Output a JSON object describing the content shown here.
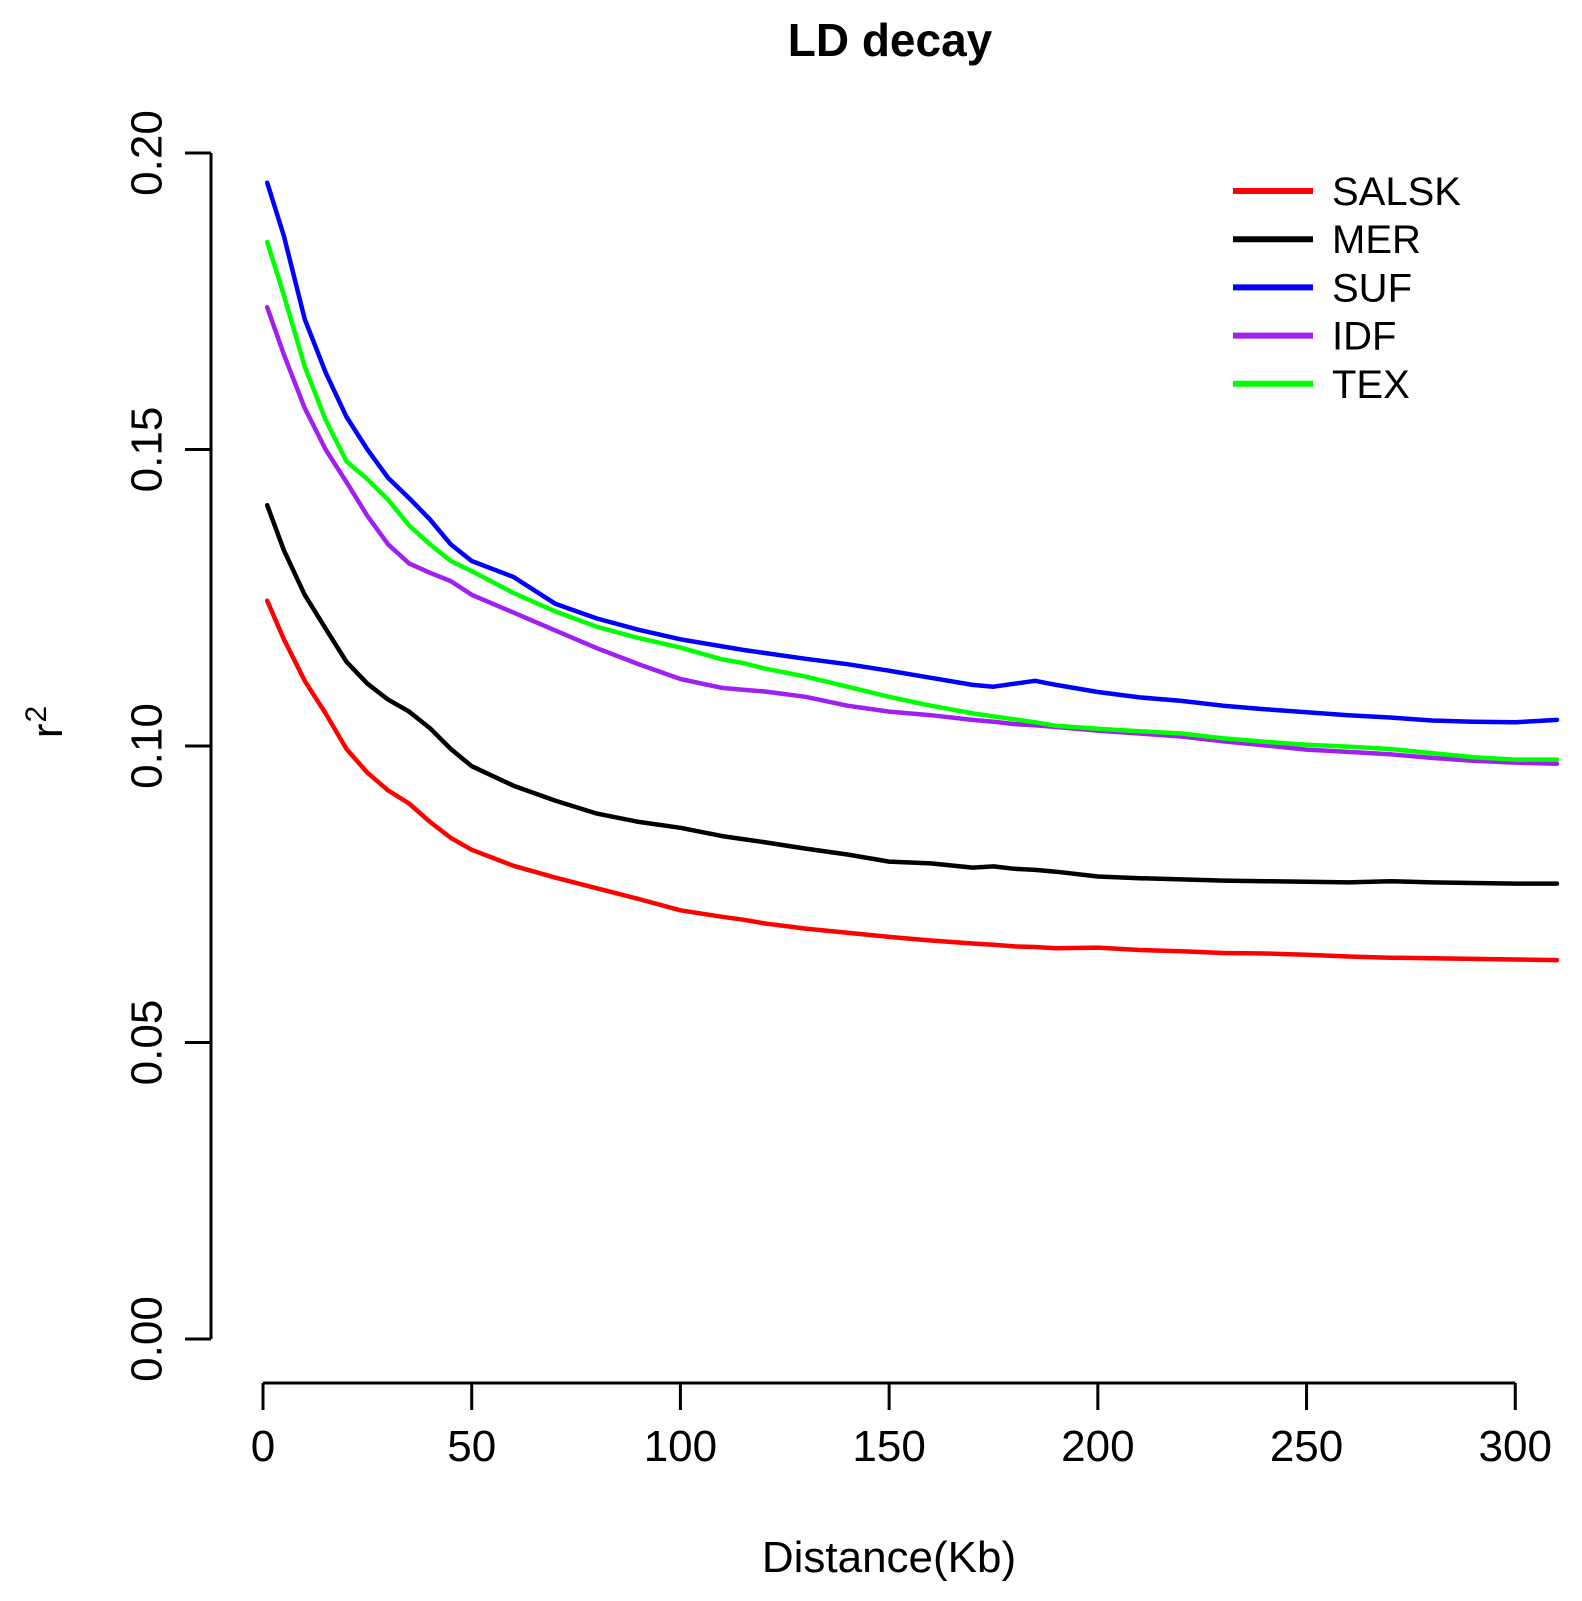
{
  "title": "LD decay",
  "axes": {
    "xlabel": "Distance(Kb)",
    "ylabel_base": "r",
    "ylabel_sup": "2"
  },
  "chart_data": {
    "type": "line",
    "title": "LD decay",
    "xlabel": "Distance(Kb)",
    "ylabel": "r^2",
    "xlim": [
      0,
      310
    ],
    "ylim": [
      0,
      0.2
    ],
    "x_tick_values": [
      0,
      50,
      100,
      150,
      200,
      250,
      300
    ],
    "x_tick_labels": [
      "0",
      "50",
      "100",
      "150",
      "200",
      "250",
      "300"
    ],
    "y_tick_values": [
      0,
      0.05,
      0.1,
      0.15,
      0.2
    ],
    "y_tick_labels": [
      "0.00",
      "0.05",
      "0.10",
      "0.15",
      "0.20"
    ],
    "grid": false,
    "legend_position": "top-right",
    "x": [
      1,
      5,
      10,
      15,
      20,
      25,
      30,
      35,
      40,
      45,
      50,
      60,
      70,
      80,
      90,
      100,
      110,
      115,
      120,
      130,
      140,
      150,
      160,
      170,
      175,
      180,
      185,
      190,
      200,
      210,
      220,
      230,
      240,
      250,
      260,
      270,
      280,
      290,
      300,
      310
    ],
    "series": [
      {
        "name": "SALSK",
        "color": "#FF0000",
        "values": [
          0.1245,
          0.118,
          0.111,
          0.1055,
          0.0995,
          0.0955,
          0.0925,
          0.0903,
          0.0872,
          0.0845,
          0.0825,
          0.0798,
          0.0778,
          0.076,
          0.0742,
          0.0723,
          0.0712,
          0.0707,
          0.0701,
          0.0692,
          0.0685,
          0.0678,
          0.0672,
          0.0667,
          0.0665,
          0.0662,
          0.0661,
          0.0659,
          0.066,
          0.0656,
          0.0654,
          0.0651,
          0.065,
          0.0648,
          0.0645,
          0.0643,
          0.0642,
          0.0641,
          0.064,
          0.0639
        ]
      },
      {
        "name": "MER",
        "color": "#000000",
        "values": [
          0.1406,
          0.133,
          0.1255,
          0.1198,
          0.1142,
          0.1105,
          0.1078,
          0.1058,
          0.103,
          0.0995,
          0.0966,
          0.0933,
          0.0908,
          0.0886,
          0.0872,
          0.0862,
          0.0848,
          0.0843,
          0.0838,
          0.0827,
          0.0817,
          0.0805,
          0.0802,
          0.0795,
          0.0797,
          0.0793,
          0.0791,
          0.0788,
          0.078,
          0.0777,
          0.0775,
          0.0773,
          0.0772,
          0.0771,
          0.077,
          0.0772,
          0.077,
          0.0769,
          0.0768,
          0.0768
        ]
      },
      {
        "name": "SUF",
        "color": "#0000FF",
        "values": [
          0.195,
          0.186,
          0.172,
          0.163,
          0.1555,
          0.15,
          0.1452,
          0.1418,
          0.1382,
          0.134,
          0.1312,
          0.1285,
          0.124,
          0.1215,
          0.1196,
          0.118,
          0.1168,
          0.1162,
          0.1157,
          0.1147,
          0.1138,
          0.1127,
          0.1115,
          0.1103,
          0.11,
          0.1105,
          0.111,
          0.1103,
          0.1091,
          0.1082,
          0.1076,
          0.1068,
          0.1062,
          0.1057,
          0.1052,
          0.1048,
          0.1043,
          0.1041,
          0.104,
          0.1044
        ]
      },
      {
        "name": "IDF",
        "color": "#A020F0",
        "values": [
          0.174,
          0.166,
          0.157,
          0.15,
          0.1445,
          0.1388,
          0.134,
          0.1308,
          0.1292,
          0.1278,
          0.1255,
          0.1225,
          0.1195,
          0.1165,
          0.1138,
          0.1113,
          0.1098,
          0.1095,
          0.1092,
          0.1083,
          0.1068,
          0.1058,
          0.1052,
          0.1044,
          0.1041,
          0.1037,
          0.1035,
          0.1032,
          0.1026,
          0.1021,
          0.1016,
          0.1008,
          0.1001,
          0.0994,
          0.099,
          0.0986,
          0.098,
          0.0975,
          0.0972,
          0.097
        ]
      },
      {
        "name": "TEX",
        "color": "#00FF00",
        "values": [
          0.185,
          0.176,
          0.164,
          0.155,
          0.148,
          0.145,
          0.1415,
          0.1372,
          0.134,
          0.1312,
          0.1295,
          0.1258,
          0.1227,
          0.1201,
          0.1182,
          0.1166,
          0.1146,
          0.114,
          0.1131,
          0.1117,
          0.11,
          0.1083,
          0.1068,
          0.1055,
          0.105,
          0.1045,
          0.104,
          0.1034,
          0.1029,
          0.1025,
          0.1021,
          0.1013,
          0.1007,
          0.1002,
          0.0999,
          0.0995,
          0.0988,
          0.0981,
          0.0977,
          0.0977
        ]
      }
    ]
  }
}
